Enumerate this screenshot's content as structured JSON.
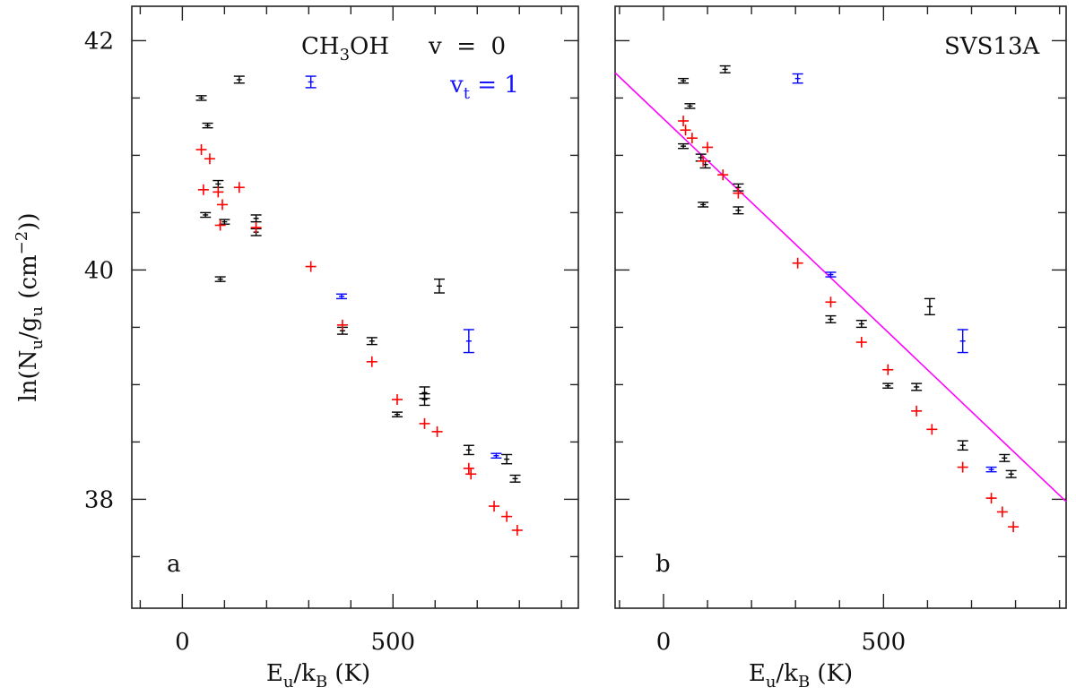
{
  "chart_data": [
    {
      "panel": "a",
      "type": "scatter",
      "xlabel": "E_u/k_B (K)",
      "ylabel": "ln(N_u/g_u (cm^-2))",
      "xlim": [
        -120,
        940
      ],
      "ylim": [
        37.05,
        42.3
      ],
      "x_ticks": [
        0,
        500
      ],
      "y_ticks": [
        38,
        40,
        42
      ],
      "grid": false,
      "annotations": {
        "species": "CH3OH",
        "legend_v0": "v = 0",
        "legend_vt1": "vt = 1",
        "panel_label": "a"
      },
      "series": [
        {
          "color": "#000000",
          "marker": "errorbar",
          "points": [
            [
              45,
              41.5,
              0.02
            ],
            [
              60,
              41.26,
              0.02
            ],
            [
              85,
              40.75,
              0.03
            ],
            [
              55,
              40.48,
              0.02
            ],
            [
              100,
              40.42,
              0.02
            ],
            [
              90,
              39.92,
              0.02
            ],
            [
              135,
              41.66,
              0.03
            ],
            [
              175,
              40.45,
              0.03
            ],
            [
              175,
              40.33,
              0.03
            ],
            [
              380,
              39.47,
              0.03
            ],
            [
              450,
              39.38,
              0.03
            ],
            [
              510,
              38.74,
              0.02
            ],
            [
              575,
              38.93,
              0.05
            ],
            [
              575,
              38.87,
              0.05
            ],
            [
              610,
              39.86,
              0.06
            ],
            [
              680,
              38.43,
              0.04
            ],
            [
              770,
              38.35,
              0.04
            ],
            [
              790,
              38.18,
              0.03
            ]
          ]
        },
        {
          "color": "#0000ff",
          "marker": "errorbar",
          "points": [
            [
              305,
              41.64,
              0.05
            ],
            [
              378,
              39.77,
              0.02
            ],
            [
              680,
              39.38,
              0.1
            ],
            [
              745,
              38.38,
              0.02
            ]
          ]
        },
        {
          "color": "#ff0000",
          "marker": "plus",
          "points": [
            [
              45,
              41.05
            ],
            [
              65,
              40.97
            ],
            [
              50,
              40.7
            ],
            [
              85,
              40.68
            ],
            [
              135,
              40.72
            ],
            [
              95,
              40.57
            ],
            [
              90,
              40.39
            ],
            [
              175,
              40.37
            ],
            [
              305,
              40.03
            ],
            [
              380,
              39.52
            ],
            [
              450,
              39.2
            ],
            [
              510,
              38.87
            ],
            [
              575,
              38.66
            ],
            [
              605,
              38.59
            ],
            [
              680,
              38.27
            ],
            [
              685,
              38.22
            ],
            [
              740,
              37.94
            ],
            [
              770,
              37.85
            ],
            [
              795,
              37.73
            ]
          ]
        }
      ]
    },
    {
      "panel": "b",
      "type": "scatter",
      "xlabel": "E_u/k_B (K)",
      "xlim": [
        -110,
        915
      ],
      "ylim": [
        37.05,
        42.3
      ],
      "x_ticks": [
        0,
        500
      ],
      "y_ticks": [
        38,
        40,
        42
      ],
      "grid": false,
      "annotations": {
        "source": "SVS13A",
        "panel_label": "b"
      },
      "fit_line": {
        "color": "#ff00ff",
        "x": [
          -110,
          915
        ],
        "y": [
          41.72,
          37.98
        ]
      },
      "series": [
        {
          "color": "#000000",
          "marker": "errorbar",
          "points": [
            [
              45,
              41.65,
              0.02
            ],
            [
              60,
              41.43,
              0.02
            ],
            [
              45,
              41.08,
              0.02
            ],
            [
              85,
              40.98,
              0.03
            ],
            [
              95,
              40.92,
              0.03
            ],
            [
              90,
              40.57,
              0.02
            ],
            [
              140,
              41.75,
              0.03
            ],
            [
              170,
              40.72,
              0.03
            ],
            [
              170,
              40.52,
              0.03
            ],
            [
              380,
              39.57,
              0.03
            ],
            [
              450,
              39.53,
              0.03
            ],
            [
              510,
              38.99,
              0.02
            ],
            [
              575,
              38.98,
              0.03
            ],
            [
              605,
              39.68,
              0.07
            ],
            [
              680,
              38.47,
              0.04
            ],
            [
              775,
              38.36,
              0.03
            ],
            [
              790,
              38.22,
              0.03
            ]
          ]
        },
        {
          "color": "#0000ff",
          "marker": "errorbar",
          "points": [
            [
              305,
              41.67,
              0.04
            ],
            [
              380,
              39.96,
              0.02
            ],
            [
              680,
              39.38,
              0.1
            ],
            [
              745,
              38.26,
              0.02
            ]
          ]
        },
        {
          "color": "#ff0000",
          "marker": "plus",
          "points": [
            [
              45,
              41.3
            ],
            [
              50,
              41.22
            ],
            [
              65,
              41.15
            ],
            [
              90,
              40.95
            ],
            [
              100,
              41.07
            ],
            [
              135,
              40.83
            ],
            [
              170,
              40.67
            ],
            [
              305,
              40.06
            ],
            [
              380,
              39.72
            ],
            [
              450,
              39.37
            ],
            [
              510,
              39.13
            ],
            [
              575,
              38.77
            ],
            [
              610,
              38.61
            ],
            [
              680,
              38.28
            ],
            [
              745,
              38.01
            ],
            [
              770,
              37.89
            ],
            [
              795,
              37.76
            ]
          ]
        }
      ]
    }
  ]
}
